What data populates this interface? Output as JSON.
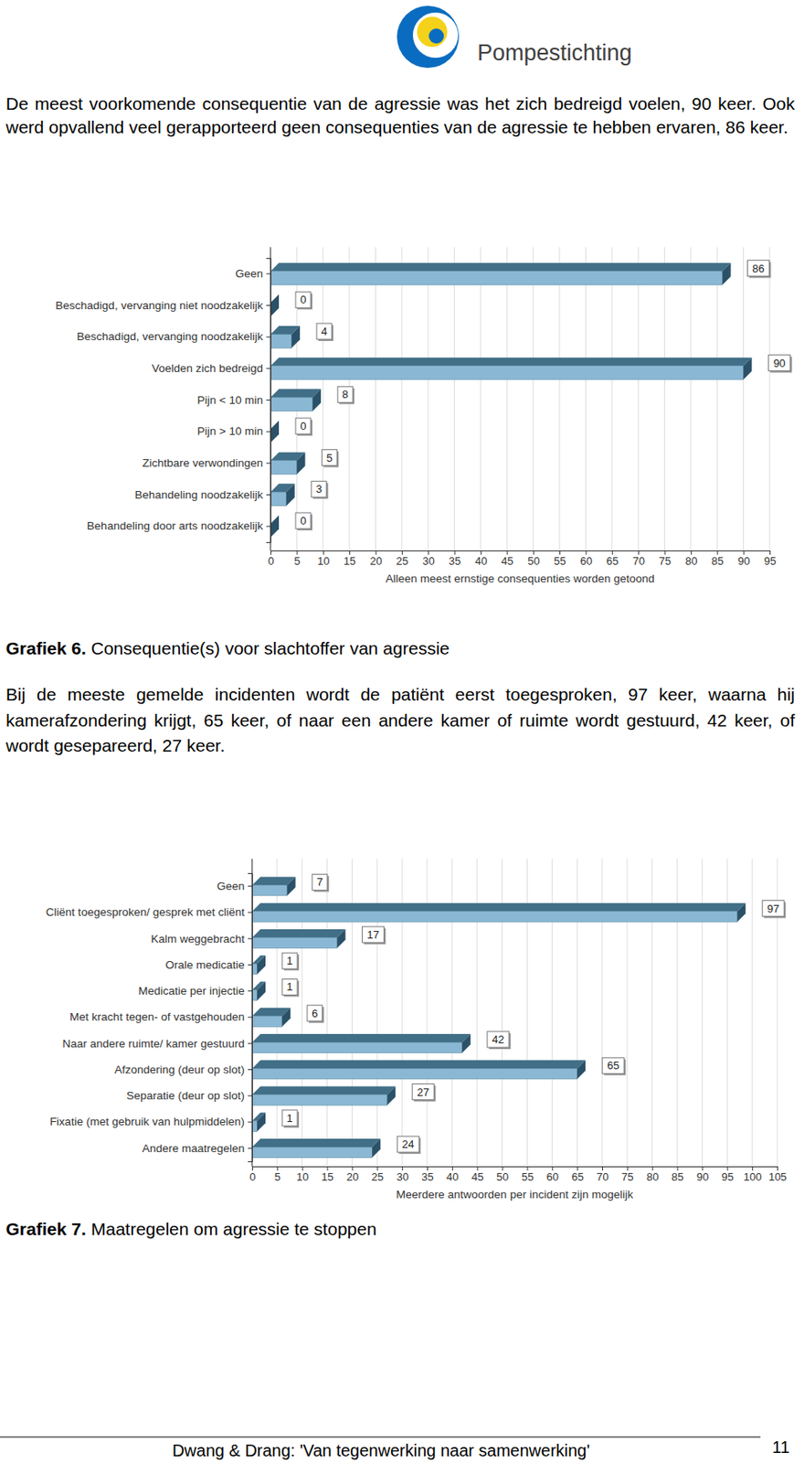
{
  "header": {
    "brand": "Pompestichting"
  },
  "paragraphs": [
    "De meest voorkomende consequentie van de agressie was het zich bedreigd voelen, 90 keer. Ook werd opvallend veel gerapporteerd geen consequenties van de agressie te hebben ervaren, 86 keer.",
    "Bij de meeste gemelde incidenten wordt de patiënt eerst toegesproken, 97 keer, waarna hij kamerafzondering krijgt, 65 keer, of naar een andere kamer of ruimte wordt gestuurd, 42 keer, of wordt gesepareerd, 27 keer."
  ],
  "chart_data": [
    {
      "type": "bar",
      "orientation": "horizontal",
      "categories": [
        "Geen",
        "Beschadigd, vervanging niet noodzakelijk",
        "Beschadigd, vervanging noodzakelijk",
        "Voelden zich bedreigd",
        "Pijn < 10 min",
        "Pijn > 10 min",
        "Zichtbare verwondingen",
        "Behandeling noodzakelijk",
        "Behandeling door arts noodzakelijk"
      ],
      "values": [
        86,
        0,
        4,
        90,
        8,
        0,
        5,
        3,
        0
      ],
      "xlabel": "Alleen meest ernstige consequenties worden getoond",
      "xlim": [
        0,
        95
      ],
      "xticks": [
        0,
        5,
        10,
        15,
        20,
        25,
        30,
        35,
        40,
        45,
        50,
        55,
        60,
        65,
        70,
        75,
        80,
        85,
        90,
        95
      ],
      "grid": true,
      "data_labels": true,
      "color": "#8ab8d4"
    },
    {
      "type": "bar",
      "orientation": "horizontal",
      "categories": [
        "Geen",
        "Cliënt toegesproken/ gesprek met cliënt",
        "Kalm weggebracht",
        "Orale medicatie",
        "Medicatie per injectie",
        "Met kracht tegen- of vastgehouden",
        "Naar andere ruimte/ kamer gestuurd",
        "Afzondering (deur op slot)",
        "Separatie (deur op slot)",
        "Fixatie (met gebruik van hulpmiddelen)",
        "Andere maatregelen"
      ],
      "values": [
        7,
        97,
        17,
        1,
        1,
        6,
        42,
        65,
        27,
        1,
        24
      ],
      "xlabel": "Meerdere antwoorden per incident zijn mogelijk",
      "xlim": [
        0,
        105
      ],
      "xticks": [
        0,
        5,
        10,
        15,
        20,
        25,
        30,
        35,
        40,
        45,
        50,
        55,
        60,
        65,
        70,
        75,
        80,
        85,
        90,
        95,
        100,
        105
      ],
      "grid": true,
      "data_labels": true,
      "color": "#8ab8d4"
    }
  ],
  "captions": [
    {
      "label": "Grafiek 6.",
      "text": "Consequentie(s) voor slachtoffer van agressie"
    },
    {
      "label": "Grafiek 7.",
      "text": "Maatregelen om agressie te stoppen"
    }
  ],
  "footer": {
    "text": "Dwang & Drang: 'Van tegenwerking naar samenwerking'",
    "page": 11
  }
}
